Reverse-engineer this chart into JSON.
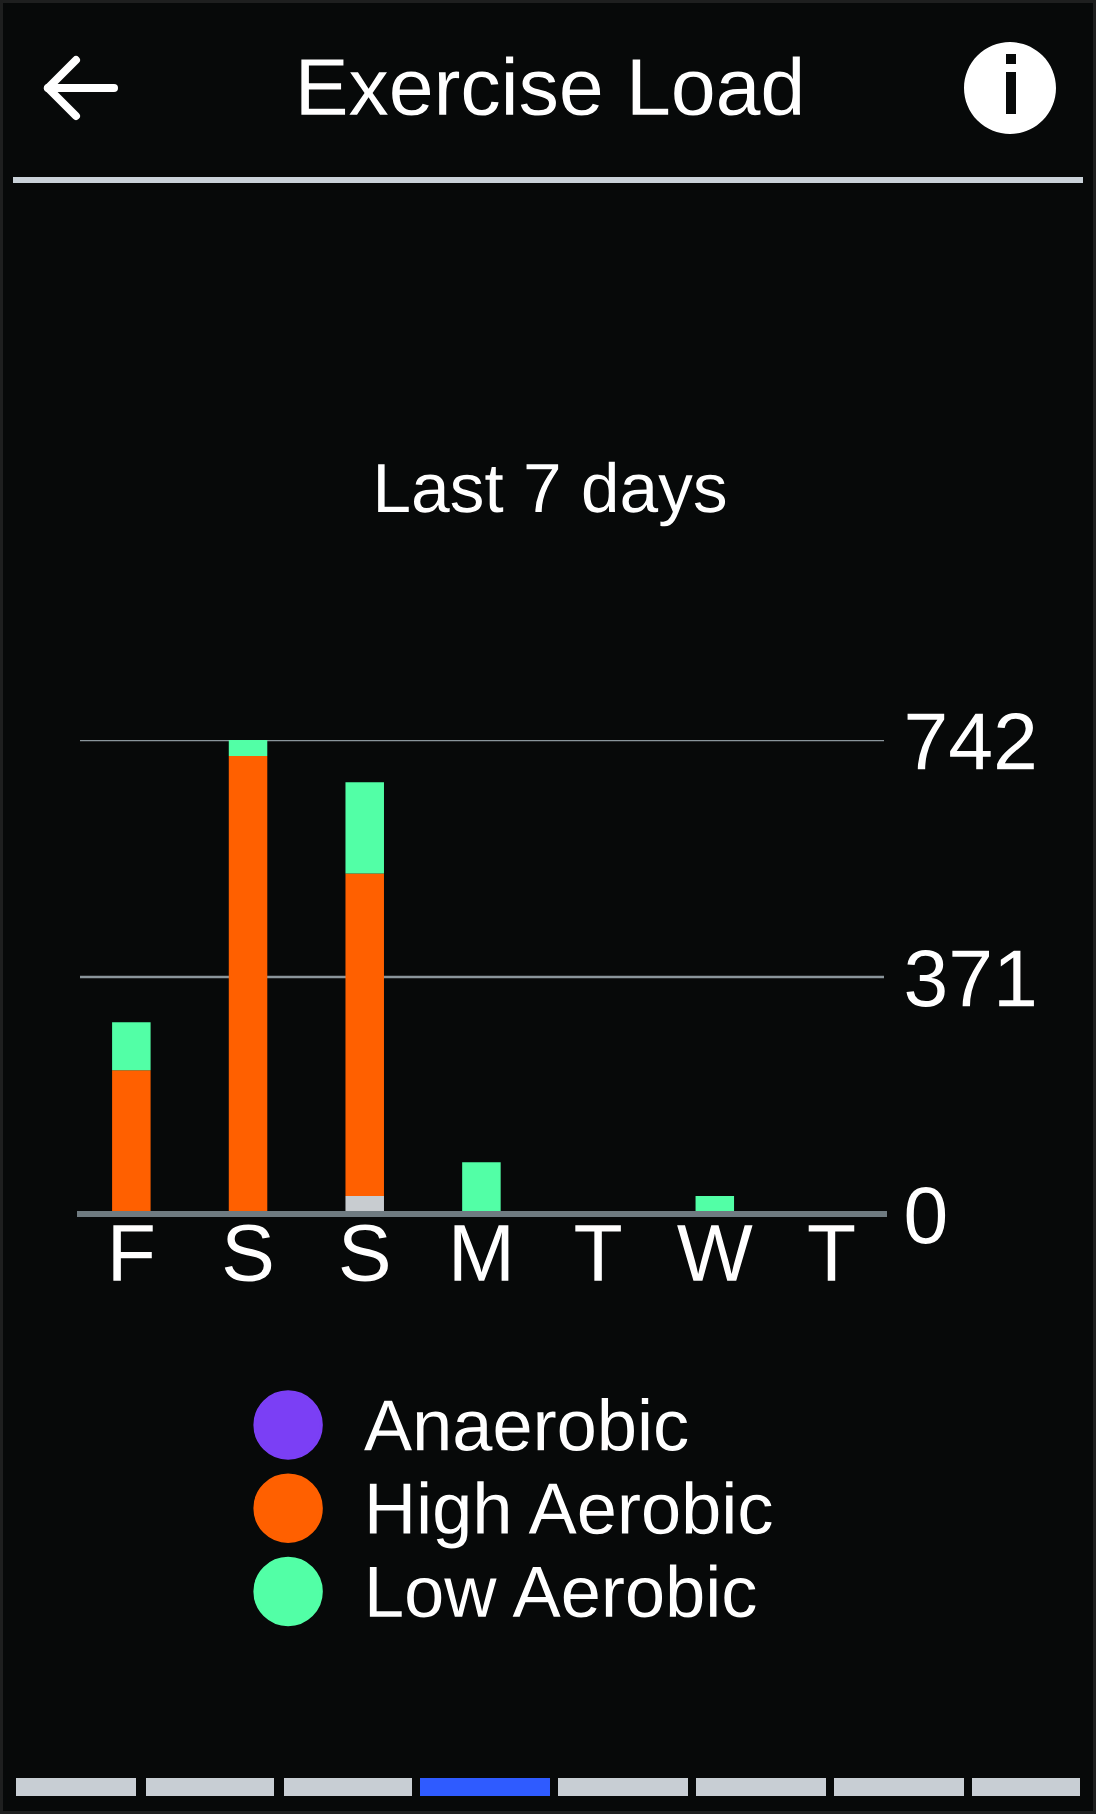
{
  "chart_data": {
    "type": "bar",
    "title": "Exercise Load",
    "subtitle": "Last 7 days",
    "categories": [
      "F",
      "S",
      "S",
      "M",
      "T",
      "W",
      "T"
    ],
    "stacked": true,
    "series": [
      {
        "color": "#c8ccd0",
        "values": [
          0,
          0,
          28,
          0,
          0,
          0,
          0
        ]
      },
      {
        "name": "Anaerobic",
        "color": "#7b3ff5",
        "values": [
          0,
          0,
          0,
          0,
          0,
          0,
          0
        ]
      },
      {
        "name": "High Aerobic",
        "color": "#ff6000",
        "values": [
          225,
          717,
          505,
          0,
          0,
          0,
          0
        ]
      },
      {
        "name": "Low Aerobic",
        "color": "#52ffa6",
        "values": [
          75,
          25,
          143,
          81,
          0,
          28,
          0
        ]
      }
    ],
    "ylim": [
      0,
      742
    ],
    "yticks": [
      0,
      371,
      742
    ],
    "grid": "y",
    "legend": "bottom"
  }
}
